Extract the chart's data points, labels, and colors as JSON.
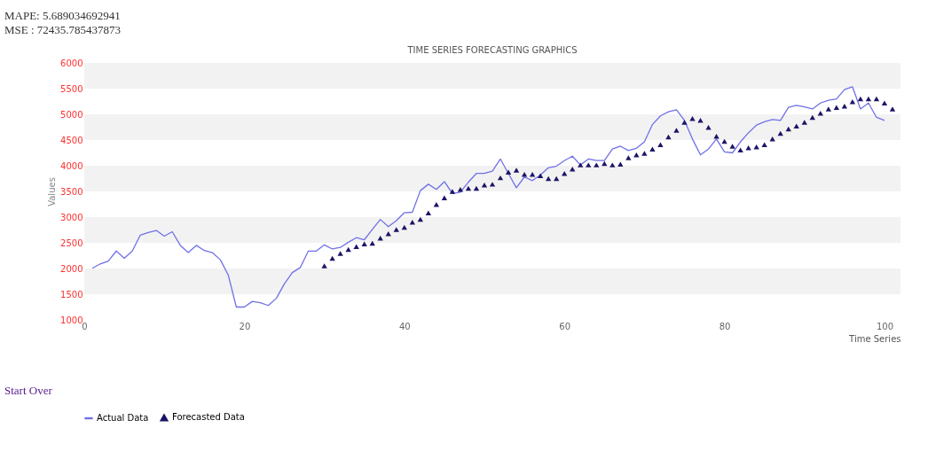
{
  "chart_data": {
    "type": "line",
    "title": "TIME SERIES FORECASTING GRAPHICS",
    "xlabel": "Time Series",
    "ylabel": "Values",
    "annotations": [
      "MAPE: 5.689034692941",
      "MSE : 72435.785437873",
      "Start Over"
    ],
    "xlim": [
      0,
      102
    ],
    "xticks": [
      0,
      20,
      40,
      60,
      80,
      100
    ],
    "ylim": [
      1000,
      6000
    ],
    "yticks": [
      1000,
      1500,
      2000,
      2500,
      3000,
      3500,
      4000,
      4500,
      5000,
      5500,
      6000
    ],
    "grid": false,
    "legend": "bottom",
    "bands": [
      {
        "axis": "y",
        "from": 1500,
        "to": 2000,
        "color": "#f2f2f2"
      },
      {
        "axis": "y",
        "from": 2500,
        "to": 3000,
        "color": "#f2f2f2"
      },
      {
        "axis": "y",
        "from": 3500,
        "to": 4000,
        "color": "#f2f2f2"
      },
      {
        "axis": "y",
        "from": 4500,
        "to": 5000,
        "color": "#f2f2f2"
      },
      {
        "axis": "y",
        "from": 5500,
        "to": 6000,
        "color": "#f2f2f2"
      }
    ],
    "series": [
      {
        "name": "Actual Data",
        "color": "#7070e8",
        "type": "line",
        "line_style": "solid",
        "x": [
          1,
          2,
          3,
          4,
          5,
          6,
          7,
          8,
          9,
          10,
          11,
          12,
          13,
          14,
          15,
          16,
          17,
          18,
          19,
          20,
          21,
          22,
          23,
          24,
          25,
          26,
          27,
          28,
          29,
          30,
          31,
          32,
          33,
          34,
          35,
          36,
          37,
          38,
          39,
          40,
          41,
          42,
          43,
          44,
          45,
          46,
          47,
          48,
          49,
          50,
          51,
          52,
          53,
          54,
          55,
          56,
          57,
          58,
          59,
          60,
          61,
          62,
          63,
          64,
          65,
          66,
          67,
          68,
          69,
          70,
          71,
          72,
          73,
          74,
          75,
          76,
          77,
          78,
          79,
          80,
          81,
          82,
          83,
          84,
          85,
          86,
          87,
          88,
          89,
          90,
          91,
          92,
          93,
          94,
          95,
          96,
          97,
          98,
          99,
          100
        ],
        "values": [
          2005,
          2090,
          2145,
          2340,
          2200,
          2340,
          2650,
          2700,
          2740,
          2630,
          2715,
          2450,
          2310,
          2450,
          2350,
          2310,
          2170,
          1870,
          1250,
          1250,
          1360,
          1335,
          1280,
          1420,
          1700,
          1920,
          2020,
          2340,
          2340,
          2460,
          2380,
          2410,
          2510,
          2600,
          2560,
          2760,
          2955,
          2815,
          2930,
          3085,
          3095,
          3515,
          3640,
          3540,
          3690,
          3460,
          3485,
          3680,
          3850,
          3850,
          3895,
          4130,
          3850,
          3570,
          3780,
          3710,
          3820,
          3960,
          3990,
          4100,
          4185,
          4015,
          4130,
          4100,
          4100,
          4325,
          4380,
          4295,
          4340,
          4465,
          4800,
          4970,
          5050,
          5090,
          4880,
          4520,
          4210,
          4325,
          4520,
          4270,
          4250,
          4465,
          4640,
          4790,
          4855,
          4900,
          4880,
          5135,
          5175,
          5145,
          5105,
          5220,
          5275,
          5300,
          5480,
          5535,
          5105,
          5220,
          4940,
          4880
        ]
      },
      {
        "name": "Forecasted Data",
        "color": "#1c1466",
        "type": "scatter",
        "marker": "triangle",
        "x": [
          30,
          31,
          32,
          33,
          34,
          35,
          36,
          37,
          38,
          39,
          40,
          41,
          42,
          43,
          44,
          45,
          46,
          47,
          48,
          49,
          50,
          51,
          52,
          53,
          54,
          55,
          56,
          57,
          58,
          59,
          60,
          61,
          62,
          63,
          64,
          65,
          66,
          67,
          68,
          69,
          70,
          71,
          72,
          73,
          74,
          75,
          76,
          77,
          78,
          79,
          80,
          81,
          82,
          83,
          84,
          85,
          86,
          87,
          88,
          89,
          90,
          91,
          92,
          93,
          94,
          95,
          96,
          97,
          98,
          99,
          100,
          101
        ],
        "values": [
          2050,
          2200,
          2295,
          2370,
          2425,
          2480,
          2490,
          2590,
          2675,
          2760,
          2800,
          2900,
          2955,
          3080,
          3245,
          3375,
          3500,
          3540,
          3560,
          3560,
          3625,
          3640,
          3765,
          3875,
          3915,
          3830,
          3830,
          3805,
          3750,
          3750,
          3850,
          3935,
          4015,
          4015,
          4015,
          4045,
          4015,
          4030,
          4155,
          4210,
          4240,
          4325,
          4410,
          4560,
          4690,
          4845,
          4920,
          4885,
          4745,
          4575,
          4475,
          4380,
          4305,
          4350,
          4365,
          4410,
          4520,
          4630,
          4715,
          4770,
          4845,
          4940,
          5020,
          5105,
          5135,
          5160,
          5245,
          5300,
          5300,
          5300,
          5220,
          5105
        ]
      }
    ]
  }
}
